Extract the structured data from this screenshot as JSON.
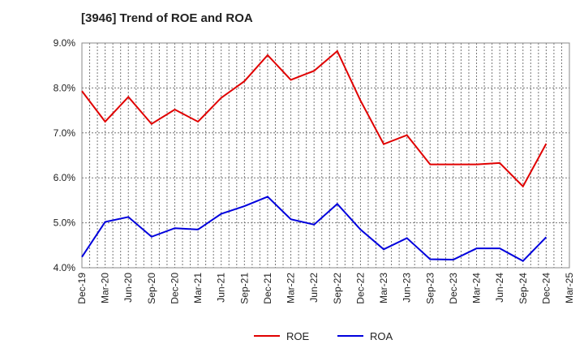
{
  "chart_data": {
    "type": "line",
    "title": "[3946]  Trend of ROE and ROA",
    "xlabel": "",
    "ylabel": "",
    "ylim": [
      4.0,
      9.0
    ],
    "yticks": [
      "4.0%",
      "5.0%",
      "6.0%",
      "7.0%",
      "8.0%",
      "9.0%"
    ],
    "grid": true,
    "legend_position": "bottom",
    "categories": [
      "Dec-19",
      "Mar-20",
      "Jun-20",
      "Sep-20",
      "Dec-20",
      "Mar-21",
      "Jun-21",
      "Sep-21",
      "Dec-21",
      "Mar-22",
      "Jun-22",
      "Sep-22",
      "Dec-22",
      "Mar-23",
      "Jun-23",
      "Sep-23",
      "Dec-23",
      "Mar-24",
      "Jun-24",
      "Sep-24",
      "Dec-24",
      "Mar-25"
    ],
    "series": [
      {
        "name": "ROE",
        "color": "#e00000",
        "values": [
          7.93,
          7.25,
          7.8,
          7.2,
          7.52,
          7.25,
          7.78,
          8.15,
          8.73,
          8.18,
          8.38,
          8.82,
          7.72,
          6.75,
          6.95,
          6.3,
          6.3,
          6.3,
          6.33,
          5.81,
          6.76,
          null
        ]
      },
      {
        "name": "ROA",
        "color": "#0000dd",
        "values": [
          4.24,
          5.02,
          5.13,
          4.69,
          4.88,
          4.85,
          5.2,
          5.37,
          5.58,
          5.08,
          4.96,
          5.42,
          4.85,
          4.41,
          4.66,
          4.19,
          4.18,
          4.43,
          4.43,
          4.15,
          4.68,
          null
        ]
      }
    ]
  }
}
